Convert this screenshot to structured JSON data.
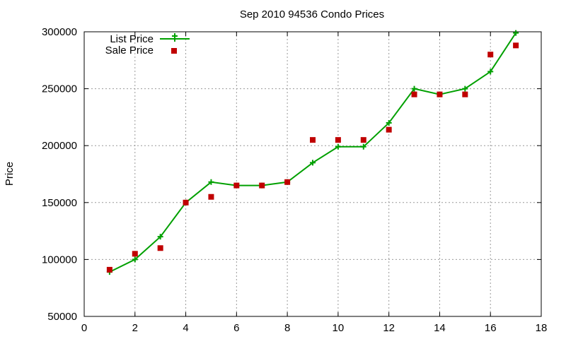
{
  "chart_data": {
    "type": "line",
    "title": "Sep 2010 94536 Condo Prices",
    "xlabel": "",
    "ylabel": "Price",
    "xlim": [
      0,
      18
    ],
    "ylim": [
      50000,
      300000
    ],
    "xticks": [
      0,
      2,
      4,
      6,
      8,
      10,
      12,
      14,
      16,
      18
    ],
    "yticks": [
      50000,
      100000,
      150000,
      200000,
      250000,
      300000
    ],
    "grid": true,
    "legend_position": "top-left",
    "series": [
      {
        "name": "List Price",
        "style": "line-with-plus-markers",
        "color": "#00a000",
        "x": [
          1,
          2,
          3,
          4,
          5,
          6,
          7,
          8,
          9,
          10,
          11,
          12,
          13,
          14,
          15,
          16,
          17
        ],
        "y": [
          89000,
          100000,
          120000,
          150000,
          168000,
          165000,
          165000,
          168000,
          185000,
          199000,
          199000,
          220000,
          250000,
          245000,
          250000,
          265000,
          299000
        ]
      },
      {
        "name": "Sale Price",
        "style": "square-markers",
        "color": "#c00000",
        "x": [
          1,
          2,
          3,
          4,
          5,
          6,
          7,
          8,
          9,
          10,
          11,
          12,
          13,
          14,
          15,
          16,
          17
        ],
        "y": [
          91000,
          105000,
          110000,
          150000,
          155000,
          165000,
          165000,
          168000,
          205000,
          205000,
          205000,
          214000,
          245000,
          245000,
          245000,
          280000,
          288000
        ]
      }
    ]
  }
}
